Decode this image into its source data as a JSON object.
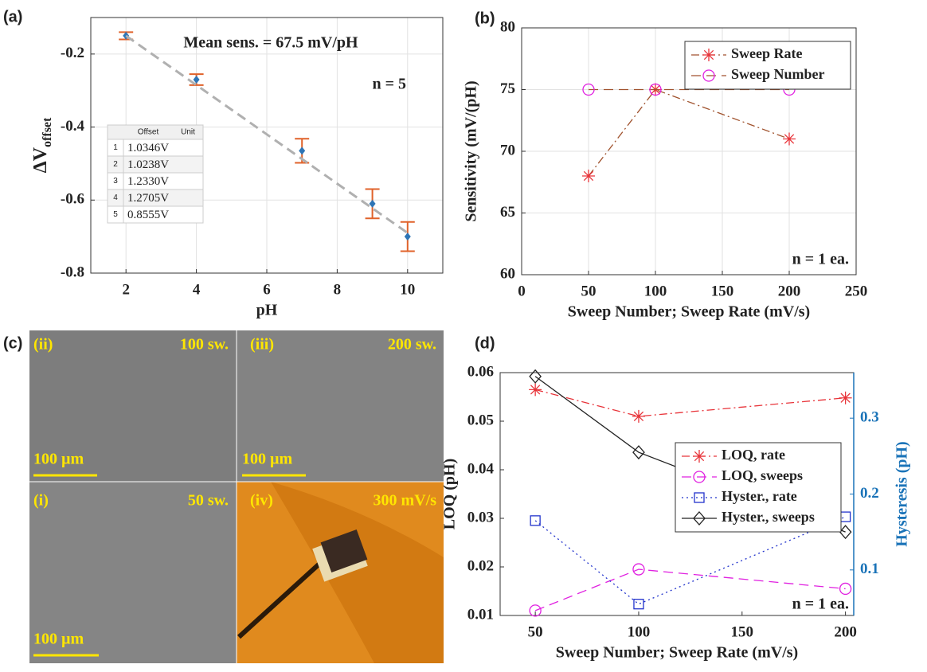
{
  "chart_data": [
    {
      "type": "scatter",
      "panel_label": "(a)",
      "xlabel": "pH",
      "ylabel": "ΔV",
      "ylabel_sub": "offset",
      "x": [
        2,
        4,
        7,
        9,
        10
      ],
      "xlim": [
        1,
        11
      ],
      "xticks": [
        2,
        4,
        6,
        8,
        10
      ],
      "ylim": [
        -0.8,
        -0.1
      ],
      "yticks": [
        -0.8,
        -0.6,
        -0.4,
        -0.2
      ],
      "grid": true,
      "annotations": [
        "Mean sens. = 67.5 mV/pH",
        "n = 5"
      ],
      "series": [
        {
          "color": "#2e75b6",
          "marker": "diamond-filled",
          "linestyle": "none",
          "error_color": "#e0622a",
          "values": [
            -0.15,
            -0.27,
            -0.465,
            -0.61,
            -0.7
          ],
          "errors": [
            0.01,
            0.015,
            0.033,
            0.04,
            0.04
          ]
        },
        {
          "color": "#b0b0b0",
          "marker": "none",
          "linestyle": "dashed",
          "x": [
            2,
            10
          ],
          "values": [
            -0.15,
            -0.69
          ]
        }
      ],
      "table": {
        "headers": [
          "Offset",
          "Unit"
        ],
        "rows": [
          [
            "1",
            "1.0346V"
          ],
          [
            "2",
            "1.0238V"
          ],
          [
            "3",
            "1.2330V"
          ],
          [
            "4",
            "1.2705V"
          ],
          [
            "5",
            "0.8555V"
          ]
        ]
      }
    },
    {
      "type": "line",
      "panel_label": "(b)",
      "xlabel": "Sweep Number; Sweep Rate (mV/s)",
      "ylabel": "Sensitivity (mV/(pH)",
      "x": [
        50,
        100,
        200
      ],
      "xlim": [
        0,
        250
      ],
      "xticks": [
        0,
        50,
        100,
        150,
        200,
        250
      ],
      "ylim": [
        60,
        80
      ],
      "yticks": [
        60,
        65,
        70,
        75,
        80
      ],
      "grid": true,
      "legend": "upper right",
      "annotations": [
        "n = 1 ea."
      ],
      "series": [
        {
          "name": "Sweep Rate",
          "color": "#e8343a",
          "line_color": "#a0522d",
          "marker": "asterisk",
          "linestyle": "dashdot",
          "values": [
            68,
            75,
            71
          ]
        },
        {
          "name": "Sweep Number",
          "color": "#e020e0",
          "line_color": "#a0522d",
          "marker": "circle",
          "linestyle": "dashed",
          "values": [
            75,
            75,
            75
          ]
        }
      ]
    },
    {
      "type": "line",
      "panel_label": "(d)",
      "xlabel": "Sweep Number; Sweep Rate (mV/s)",
      "ylabel": "LOQ (pH)",
      "y2label": "Hysteresis (pH)",
      "y2_color": "#1a73b8",
      "x": [
        50,
        100,
        200
      ],
      "xlim": [
        33,
        204
      ],
      "xticks": [
        50,
        100,
        150,
        200
      ],
      "ylim": [
        0.01,
        0.06
      ],
      "yticks": [
        0.01,
        0.02,
        0.03,
        0.04,
        0.05,
        0.06
      ],
      "y2lim": [
        0.04,
        0.36
      ],
      "y2ticks": [
        0.1,
        0.2,
        0.3
      ],
      "grid": false,
      "legend": "center right",
      "annotations": [
        "n = 1 ea."
      ],
      "series": [
        {
          "name": "LOQ, rate",
          "color": "#e8343a",
          "marker": "asterisk",
          "linestyle": "dashdot",
          "values": [
            0.0565,
            0.051,
            0.0548
          ]
        },
        {
          "name": "LOQ, sweeps",
          "color": "#e020e0",
          "marker": "circle",
          "linestyle": "dashed",
          "values": [
            0.011,
            0.0195,
            0.0155
          ]
        },
        {
          "name": "Hyster., rate",
          "color": "#2233cc",
          "marker": "square",
          "linestyle": "dotted",
          "axis": "y2",
          "values": [
            0.165,
            0.055,
            0.17
          ]
        },
        {
          "name": "Hyster., sweeps",
          "color": "#222222",
          "marker": "diamond",
          "linestyle": "solid",
          "axis": "y2",
          "values": [
            0.355,
            0.255,
            0.15
          ]
        }
      ]
    }
  ],
  "image_panel": {
    "panel_label": "(c)",
    "tiles": [
      {
        "label": "(ii)",
        "caption": "100 sw.",
        "scale": "100 µm"
      },
      {
        "label": "(iii)",
        "caption": "200 sw.",
        "scale": "100 µm"
      },
      {
        "label": "(i)",
        "caption": "50 sw.",
        "scale": "100 µm"
      },
      {
        "label": "(iv)",
        "caption": "300 mV/s"
      }
    ]
  }
}
